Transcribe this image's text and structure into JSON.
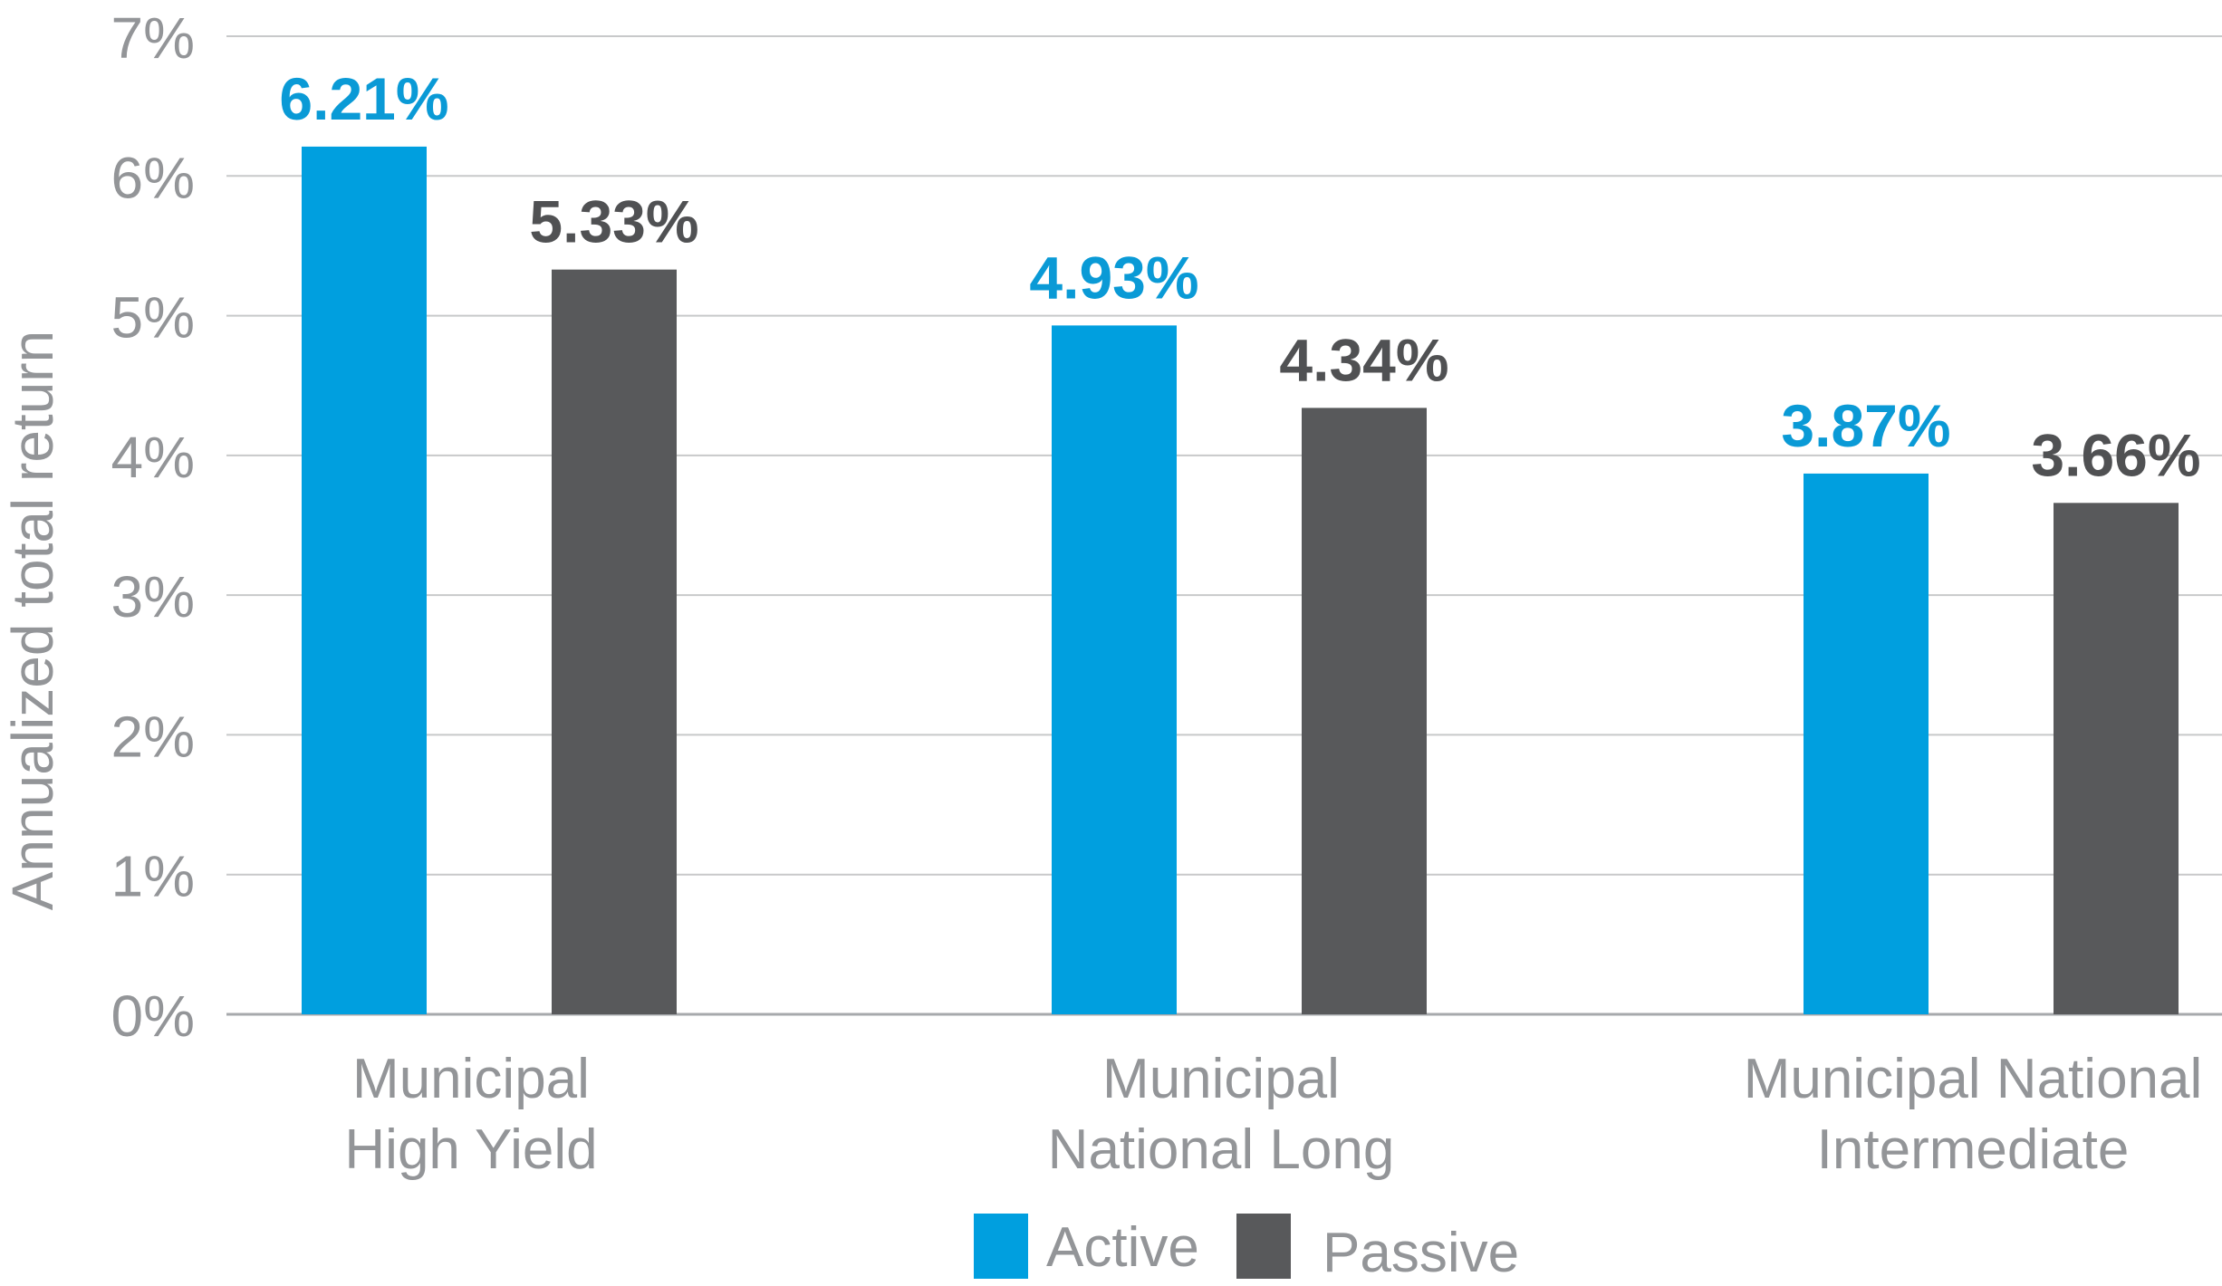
{
  "chart_data": {
    "type": "bar",
    "title": "",
    "xlabel": "",
    "ylabel": "Annualized total return",
    "categories": [
      [
        "Municipal",
        "High Yield"
      ],
      [
        "Municipal",
        "National Long"
      ],
      [
        "Municipal National",
        "Intermediate"
      ]
    ],
    "series": [
      {
        "name": "Active",
        "color": "#009fdf",
        "label_color": "#0a9ad6",
        "values": [
          6.21,
          4.93,
          3.87
        ],
        "labels": [
          "6.21%",
          "4.93%",
          "3.87%"
        ]
      },
      {
        "name": "Passive",
        "color": "#58595b",
        "label_color": "#505153",
        "values": [
          5.33,
          4.34,
          3.66
        ],
        "labels": [
          "5.33%",
          "4.34%",
          "3.66%"
        ]
      }
    ],
    "ylim": [
      0,
      7
    ],
    "yticks": [
      0,
      1,
      2,
      3,
      4,
      5,
      6,
      7
    ],
    "ytick_labels": [
      "0%",
      "1%",
      "2%",
      "3%",
      "4%",
      "5%",
      "6%",
      "7%"
    ],
    "grid": true,
    "legend_position": "bottom-center",
    "colors": {
      "axis_text": "#939598",
      "gridline": "#c8c9ca",
      "baseline": "#a7a9ac"
    }
  }
}
